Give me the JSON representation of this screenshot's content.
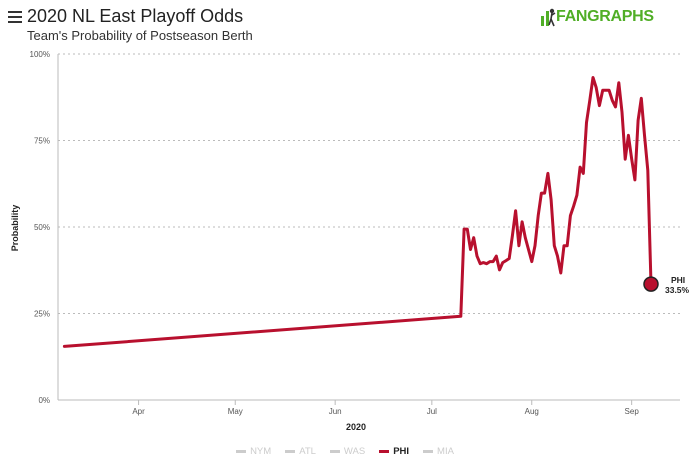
{
  "header": {
    "title": "2020 NL East Playoff Odds",
    "subtitle": "Team's Probability of Postseason Berth",
    "logo_text": "FANGRAPHS"
  },
  "colors": {
    "phi": "#b8102e",
    "inactive": "#cccccc",
    "brand": "#50ae26"
  },
  "legend": [
    {
      "label": "NYM",
      "active": false
    },
    {
      "label": "ATL",
      "active": false
    },
    {
      "label": "WAS",
      "active": false
    },
    {
      "label": "PHI",
      "active": true
    },
    {
      "label": "MIA",
      "active": false
    }
  ],
  "chart_data": {
    "type": "line",
    "xlabel": "2020",
    "ylabel": "Probability",
    "ylim": [
      0,
      100
    ],
    "xlim": [
      "2020-03-21",
      "2020-09-30"
    ],
    "yticks": [
      "0%",
      "25%",
      "50%",
      "75%",
      "100%"
    ],
    "xticks": [
      {
        "label": "Apr",
        "date": "2020-04-15"
      },
      {
        "label": "May",
        "date": "2020-05-15"
      },
      {
        "label": "Jun",
        "date": "2020-06-15"
      },
      {
        "label": "Jul",
        "date": "2020-07-15"
      },
      {
        "label": "Aug",
        "date": "2020-08-15"
      },
      {
        "label": "Sep",
        "date": "2020-09-15"
      }
    ],
    "grid": "horizontal dotted",
    "end_label": {
      "team": "PHI",
      "value": "33.5%"
    },
    "series": [
      {
        "name": "PHI",
        "points": [
          [
            "2020-03-23",
            15.5
          ],
          [
            "2020-07-24",
            24.2
          ],
          [
            "2020-07-25",
            49.4
          ],
          [
            "2020-07-26",
            49.4
          ],
          [
            "2020-07-27",
            43.5
          ],
          [
            "2020-07-28",
            46.9
          ],
          [
            "2020-07-29",
            41.6
          ],
          [
            "2020-07-30",
            39.4
          ],
          [
            "2020-07-31",
            39.7
          ],
          [
            "2020-08-01",
            39.4
          ],
          [
            "2020-08-02",
            40.0
          ],
          [
            "2020-08-03",
            40.0
          ],
          [
            "2020-08-04",
            41.6
          ],
          [
            "2020-08-05",
            37.6
          ],
          [
            "2020-08-06",
            39.7
          ],
          [
            "2020-08-07",
            40.3
          ],
          [
            "2020-08-08",
            40.9
          ],
          [
            "2020-08-09",
            47.5
          ],
          [
            "2020-08-10",
            54.7
          ],
          [
            "2020-08-11",
            44.6
          ],
          [
            "2020-08-12",
            51.5
          ],
          [
            "2020-08-13",
            46.9
          ],
          [
            "2020-08-14",
            43.5
          ],
          [
            "2020-08-15",
            40.0
          ],
          [
            "2020-08-16",
            44.6
          ],
          [
            "2020-08-17",
            53.3
          ],
          [
            "2020-08-18",
            59.8
          ],
          [
            "2020-08-19",
            59.8
          ],
          [
            "2020-08-20",
            65.5
          ],
          [
            "2020-08-21",
            57.9
          ],
          [
            "2020-08-22",
            44.6
          ],
          [
            "2020-08-23",
            41.6
          ],
          [
            "2020-08-24",
            36.7
          ],
          [
            "2020-08-25",
            44.6
          ],
          [
            "2020-08-26",
            44.6
          ],
          [
            "2020-08-27",
            53.3
          ],
          [
            "2020-08-28",
            56.0
          ],
          [
            "2020-08-29",
            59.2
          ],
          [
            "2020-08-30",
            67.3
          ],
          [
            "2020-08-31",
            65.5
          ],
          [
            "2020-09-01",
            80.2
          ],
          [
            "2020-09-02",
            86.6
          ],
          [
            "2020-09-03",
            93.2
          ],
          [
            "2020-09-04",
            90.3
          ],
          [
            "2020-09-05",
            85.1
          ],
          [
            "2020-09-06",
            89.5
          ],
          [
            "2020-09-07",
            89.5
          ],
          [
            "2020-09-08",
            89.5
          ],
          [
            "2020-09-09",
            86.6
          ],
          [
            "2020-09-10",
            84.7
          ],
          [
            "2020-09-11",
            91.7
          ],
          [
            "2020-09-12",
            83.2
          ],
          [
            "2020-09-13",
            69.6
          ],
          [
            "2020-09-14",
            76.5
          ],
          [
            "2020-09-15",
            69.6
          ],
          [
            "2020-09-16",
            63.6
          ],
          [
            "2020-09-17",
            80.8
          ],
          [
            "2020-09-18",
            87.2
          ],
          [
            "2020-09-19",
            76.5
          ],
          [
            "2020-09-20",
            66.4
          ],
          [
            "2020-09-21",
            33.5
          ]
        ]
      }
    ]
  }
}
